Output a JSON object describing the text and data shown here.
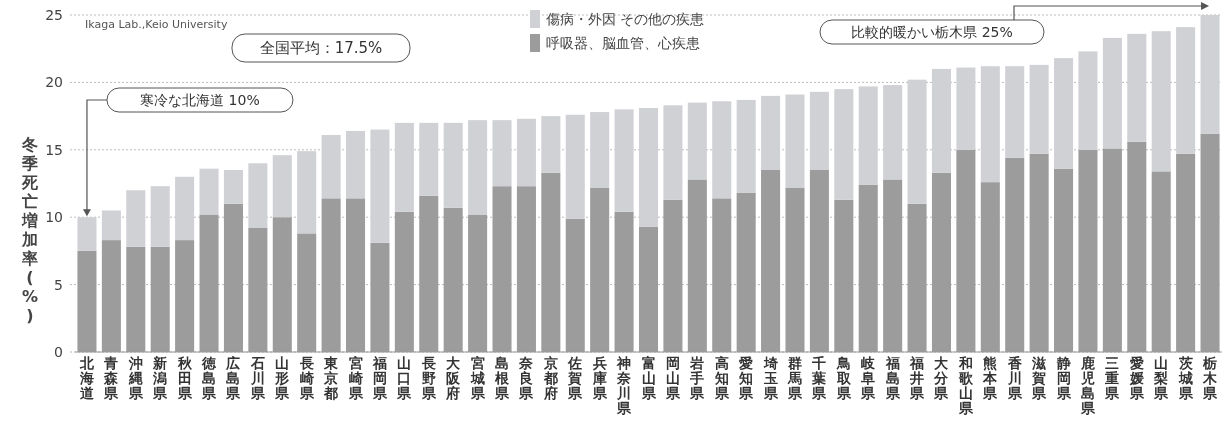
{
  "chart_data": {
    "type": "bar",
    "stacked": true,
    "ylabel": "冬季死亡増加率(%)",
    "categories": [
      "北海道",
      "青森県",
      "沖縄県",
      "新潟県",
      "秋田県",
      "徳島県",
      "広島県",
      "石川県",
      "山形県",
      "長崎県",
      "東京都",
      "宮崎県",
      "福岡県",
      "山口県",
      "長野県",
      "大阪府",
      "宮城県",
      "島根県",
      "奈良県",
      "京都府",
      "佐賀県",
      "兵庫県",
      "神奈川県",
      "富山県",
      "岡山県",
      "岩手県",
      "高知県",
      "愛知県",
      "埼玉県",
      "群馬県",
      "千葉県",
      "鳥取県",
      "岐阜県",
      "福島県",
      "福井県",
      "大分県",
      "和歌山県",
      "熊本県",
      "香川県",
      "滋賀県",
      "静岡県",
      "鹿児島県",
      "三重県",
      "愛媛県",
      "山梨県",
      "茨城県",
      "栃木県"
    ],
    "series": [
      {
        "name": "呼吸器、脳血管、心疾患",
        "color": "#9c9c9c",
        "values": [
          7.5,
          8.3,
          7.8,
          7.8,
          8.3,
          10.2,
          11.0,
          9.2,
          10.0,
          8.8,
          11.4,
          11.4,
          8.1,
          10.4,
          11.6,
          10.7,
          10.2,
          12.3,
          12.3,
          13.3,
          9.9,
          12.2,
          10.4,
          9.3,
          11.3,
          12.8,
          11.4,
          11.8,
          13.5,
          12.2,
          13.5,
          11.3,
          12.4,
          12.8,
          11.0,
          13.3,
          15.0,
          12.6,
          14.4,
          14.7,
          13.6,
          15.0,
          15.1,
          15.6,
          13.4,
          14.7,
          16.2
        ]
      },
      {
        "name": "傷病・外因 その他の疾患",
        "color": "#cfd1d4",
        "values": [
          2.5,
          2.2,
          4.2,
          4.5,
          4.7,
          3.4,
          2.5,
          4.8,
          4.6,
          6.1,
          4.7,
          5.0,
          8.4,
          6.6,
          5.4,
          6.3,
          7.0,
          4.9,
          5.0,
          4.2,
          7.7,
          5.6,
          7.6,
          8.8,
          7.0,
          5.7,
          7.2,
          6.9,
          5.5,
          6.9,
          5.8,
          8.2,
          7.3,
          7.0,
          9.2,
          7.7,
          6.1,
          8.6,
          6.8,
          6.6,
          8.2,
          7.3,
          8.2,
          8.0,
          10.4,
          9.4,
          8.8
        ]
      }
    ],
    "ylim": [
      0,
      25
    ],
    "yticks": [
      0,
      5,
      10,
      15,
      20,
      25
    ],
    "grid": "y",
    "legend": "top",
    "annotations": [
      "Ikaga Lab.,Keio University",
      "全国平均：17.5%",
      "寒冷な北海道 10%",
      "比較的暖かい栃木県 25%"
    ]
  }
}
